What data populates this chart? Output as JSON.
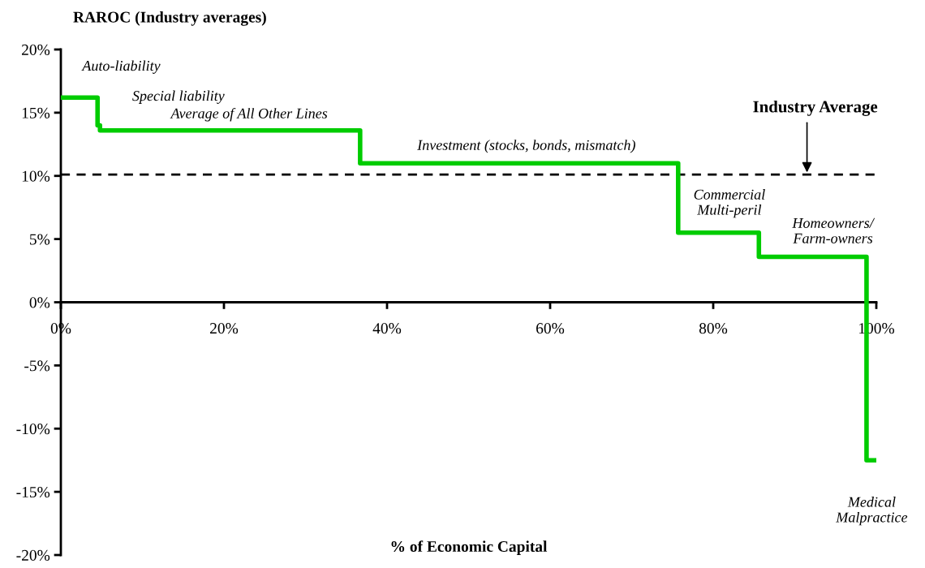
{
  "chart_data": {
    "type": "step",
    "title": "RAROC (Industry averages)",
    "xlabel": "% of Economic Capital",
    "x": [
      0,
      4.5,
      4.8,
      36.7,
      75.7,
      85.6,
      98.8,
      100
    ],
    "series": [
      {
        "color": "#00cc00",
        "values": [
          16.2,
          14.0,
          13.6,
          11.0,
          5.5,
          3.6,
          -12.5,
          -12.5
        ]
      }
    ],
    "xlim": [
      0,
      100
    ],
    "ylim": [
      -20,
      20
    ],
    "xticks": [
      {
        "value": 0,
        "label": "0%"
      },
      {
        "value": 20,
        "label": "20%"
      },
      {
        "value": 40,
        "label": "40%"
      },
      {
        "value": 60,
        "label": "60%"
      },
      {
        "value": 80,
        "label": "80%"
      },
      {
        "value": 100,
        "label": "100%"
      }
    ],
    "yticks": [
      {
        "value": -20,
        "label": "-20%"
      },
      {
        "value": -15,
        "label": "-15%"
      },
      {
        "value": -10,
        "label": "-10%"
      },
      {
        "value": -5,
        "label": "-5%"
      },
      {
        "value": 0,
        "label": "0%"
      },
      {
        "value": 5,
        "label": "5%"
      },
      {
        "value": 10,
        "label": "10%"
      },
      {
        "value": 15,
        "label": "15%"
      },
      {
        "value": 20,
        "label": "20%"
      }
    ],
    "ref_lines": [
      {
        "axis": "y",
        "value": 10.1,
        "label": "Industry Average",
        "color": "#000000",
        "line_style": "dashed"
      }
    ],
    "annotations": [
      {
        "text": "Auto-liability",
        "x": 2.3,
        "y": 16.2
      },
      {
        "text": "Special liability",
        "x": 4.6,
        "y": 14.0
      },
      {
        "text": "Average of All Other Lines",
        "x": 23.1,
        "y": 13.6
      },
      {
        "text": "Investment (stocks, bonds, mismatch)",
        "x": 57.1,
        "y": 11.0
      },
      {
        "text": "Commercial\nMulti-peril",
        "x": 80.6,
        "y": 5.5
      },
      {
        "text": "Homeowners/\nFarm-owners",
        "x": 92.2,
        "y": 3.6
      },
      {
        "text": "Medical\nMalpractice",
        "x": 100,
        "y": -12.5
      }
    ],
    "grid": false,
    "legend": false
  }
}
